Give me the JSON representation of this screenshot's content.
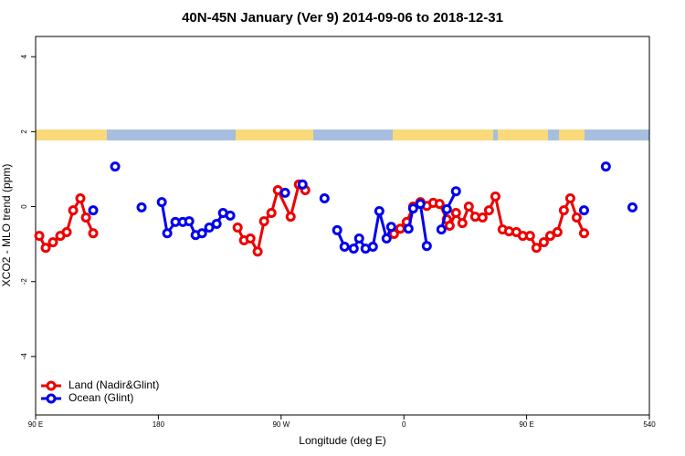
{
  "chart_data": {
    "type": "line",
    "title": "40N-45N January (Ver 9)   2014-09-06 to 2018-12-31",
    "x_label": "Longitude (deg E)",
    "y_label": "XCO2 - MLO trend (ppm)",
    "xlim": [
      90,
      540
    ],
    "ylim": [
      -5.56,
      4.54
    ],
    "xticks": [
      {
        "value": 90,
        "label": "90 E"
      },
      180,
      {
        "value": 270,
        "label": "90 W"
      },
      {
        "value": 360,
        "label": "0"
      },
      {
        "value": 450,
        "label": "90 E"
      },
      540
    ],
    "yticks": [
      -4,
      -2,
      0,
      2,
      4
    ],
    "legend": "bottom-left",
    "series": [
      {
        "name": "Land (Nadir&Glint)",
        "color": "#ee0000",
        "x": [
          92.7,
          97.4,
          102.7,
          108.1,
          112.8,
          117.5,
          122.8,
          126.9,
          132.2,
          null,
          238.1,
          242.8,
          247.5,
          252.8,
          257.5,
          262.9,
          267.6,
          277.0,
          283.0,
          287.7,
          null,
          352.7,
          357.4,
          362.1,
          366.8,
          372.1,
          376.8,
          381.5,
          386.2,
          391.5,
          393.6,
          398.2,
          402.9,
          407.6,
          412.3,
          417.7,
          422.4,
          427.1,
          432.4,
          437.1,
          442.5,
          447.2,
          452.5,
          457.2,
          462.6,
          467.3,
          472.6,
          477.3,
          482.0,
          486.7,
          492.1
        ],
        "values": [
          -0.78,
          -1.1,
          -0.95,
          -0.78,
          -0.68,
          -0.1,
          0.22,
          -0.29,
          -0.71,
          null,
          -0.56,
          -0.9,
          -0.85,
          -1.2,
          -0.39,
          -0.17,
          0.44,
          -0.27,
          0.59,
          0.44,
          null,
          -0.73,
          -0.59,
          -0.41,
          0.0,
          0.12,
          0.02,
          0.1,
          0.07,
          -0.34,
          -0.51,
          -0.17,
          -0.44,
          0.0,
          -0.27,
          -0.29,
          -0.1,
          0.27,
          -0.61,
          -0.66,
          -0.68,
          -0.78,
          -0.78,
          -1.1,
          -0.95,
          -0.78,
          -0.68,
          -0.1,
          0.22,
          -0.29,
          -0.71
        ]
      },
      {
        "name": "Ocean (Glint)",
        "color": "#0000ee",
        "x": [
          132.2,
          null,
          148.3,
          null,
          167.7,
          null,
          182.5,
          186.5,
          192.5,
          197.9,
          202.6,
          207.3,
          212.0,
          217.3,
          222.7,
          227.4,
          232.7,
          null,
          272.9,
          null,
          285.7,
          null,
          301.8,
          null,
          311.1,
          316.5,
          323.2,
          327.2,
          331.9,
          337.3,
          342.0,
          347.3,
          350.7,
          null,
          363.4,
          366.8,
          372.1,
          376.8,
          null,
          387.5,
          391.5,
          398.2,
          null,
          492.1,
          null,
          508.1,
          null,
          527.6
        ],
        "values": [
          -0.1,
          null,
          1.07,
          null,
          -0.02,
          null,
          0.12,
          -0.71,
          -0.41,
          -0.41,
          -0.39,
          -0.76,
          -0.71,
          -0.56,
          -0.46,
          -0.17,
          -0.24,
          null,
          0.37,
          null,
          0.59,
          null,
          0.22,
          null,
          -0.63,
          -1.07,
          -1.12,
          -0.85,
          -1.12,
          -1.07,
          -0.12,
          -0.85,
          -0.54,
          null,
          -0.59,
          -0.05,
          0.07,
          -1.05,
          null,
          -0.61,
          -0.07,
          0.41,
          null,
          -0.1,
          null,
          1.07,
          null,
          -0.02
        ]
      }
    ]
  }
}
